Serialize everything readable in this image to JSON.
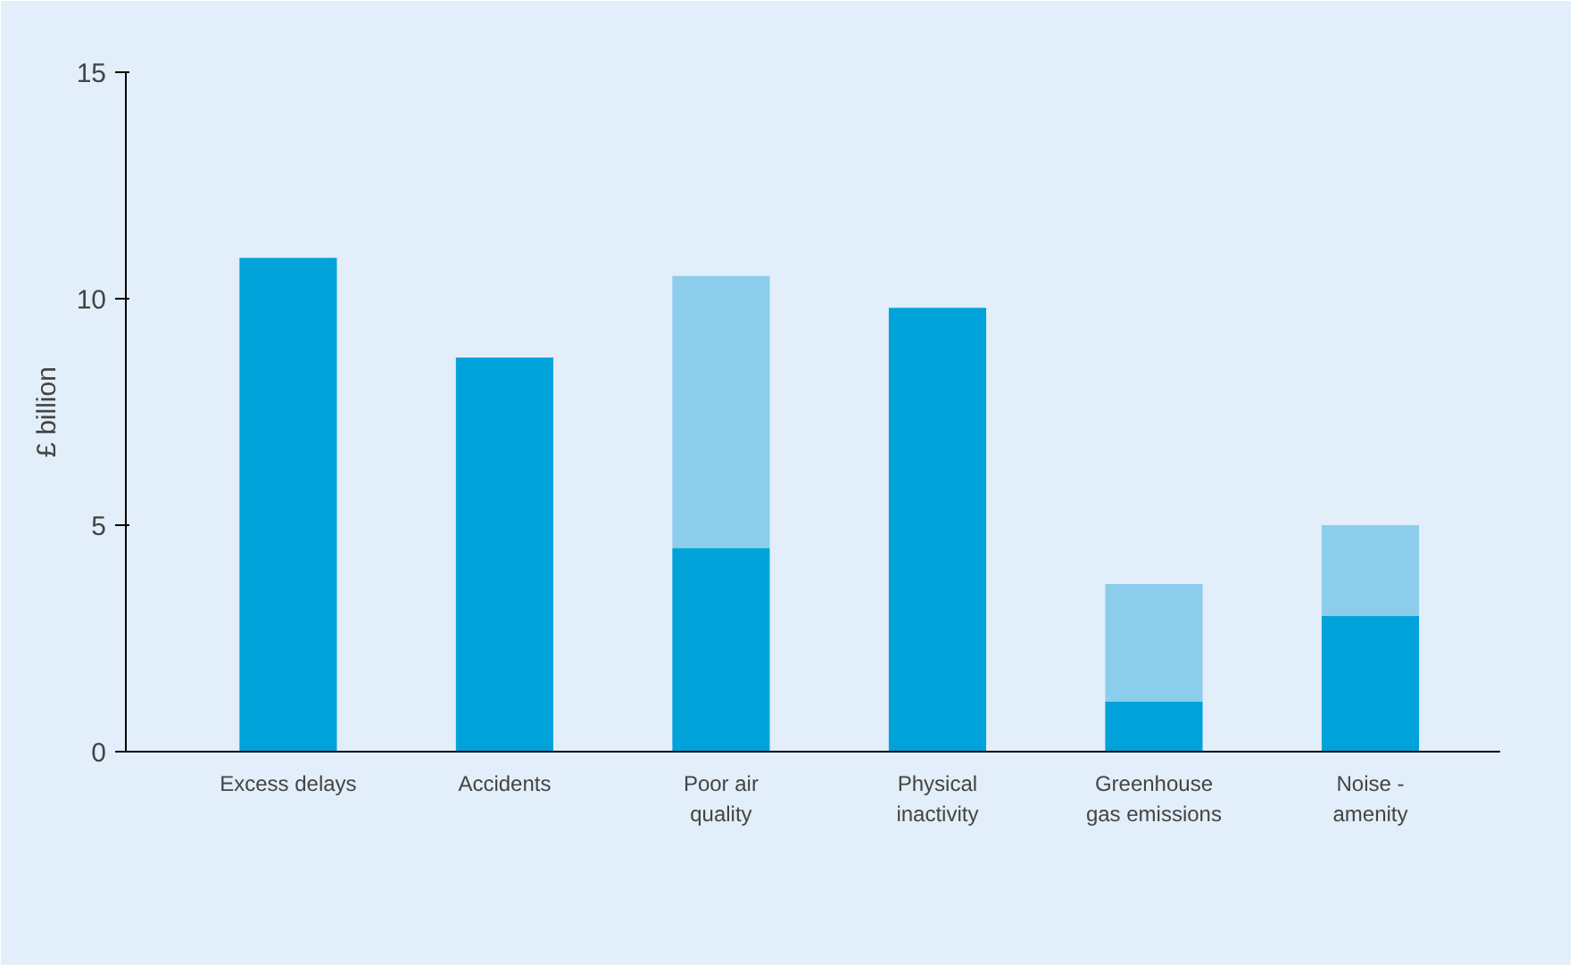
{
  "chart_data": {
    "type": "bar",
    "stacked": true,
    "ylabel": "£ billion",
    "categories": [
      "Excess delays",
      "Accidents",
      "Poor air quality",
      "Physical inactivity",
      "Greenhouse gas emissions",
      "Noise - amenity"
    ],
    "series": [
      {
        "color": "#00a3d9",
        "values": [
          10.9,
          8.7,
          4.5,
          9.8,
          1.1,
          3.0
        ]
      },
      {
        "color": "#8ccdec",
        "values": [
          null,
          null,
          6.0,
          null,
          2.6,
          2.0
        ]
      }
    ],
    "ylim": [
      0,
      15
    ],
    "yticks": [
      0,
      5,
      10,
      15
    ]
  }
}
